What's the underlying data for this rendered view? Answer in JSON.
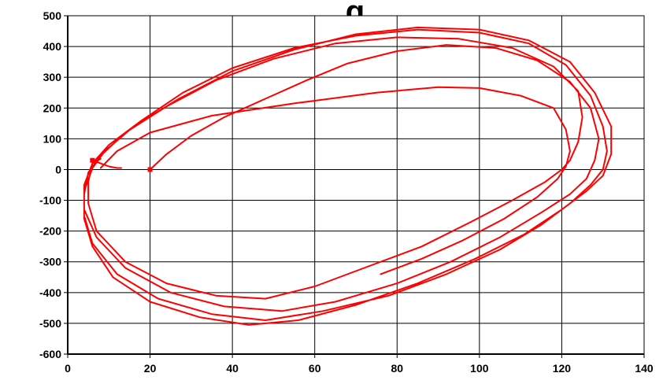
{
  "chart_data": {
    "type": "line",
    "title": "g",
    "xlabel": "",
    "ylabel": "",
    "xlim": [
      0,
      140
    ],
    "ylim": [
      -600,
      500
    ],
    "x_ticks": [
      "0",
      "20",
      "40",
      "60",
      "80",
      "100",
      "120",
      "140"
    ],
    "y_ticks": [
      "500",
      "400",
      "300",
      "200",
      "100",
      "0",
      "-100",
      "-200",
      "-300",
      "-400",
      "-500",
      "-600"
    ],
    "grid": true,
    "legend": "none",
    "series_color": "#ff0000",
    "series": [
      {
        "points": [
          [
            20,
            0
          ],
          [
            24,
            50
          ],
          [
            30,
            110
          ],
          [
            38,
            170
          ],
          [
            48,
            230
          ],
          [
            58,
            290
          ],
          [
            68,
            345
          ],
          [
            80,
            385
          ],
          [
            92,
            405
          ],
          [
            104,
            395
          ],
          [
            114,
            355
          ],
          [
            122,
            285
          ],
          [
            127,
            200
          ],
          [
            129,
            100
          ],
          [
            128,
            30
          ],
          [
            126,
            -30
          ],
          [
            122,
            -80
          ],
          [
            115,
            -140
          ],
          [
            105,
            -220
          ],
          [
            93,
            -300
          ],
          [
            80,
            -370
          ],
          [
            65,
            -430
          ],
          [
            52,
            -460
          ],
          [
            38,
            -445
          ],
          [
            25,
            -400
          ],
          [
            14,
            -320
          ],
          [
            7,
            -220
          ],
          [
            4,
            -130
          ],
          [
            4,
            -50
          ],
          [
            6,
            20
          ],
          [
            10,
            80
          ],
          [
            18,
            160
          ],
          [
            28,
            250
          ],
          [
            40,
            330
          ],
          [
            55,
            395
          ],
          [
            70,
            435
          ],
          [
            85,
            455
          ],
          [
            100,
            445
          ],
          [
            112,
            410
          ],
          [
            121,
            340
          ],
          [
            127,
            240
          ],
          [
            130,
            140
          ],
          [
            131,
            60
          ],
          [
            130,
            0
          ],
          [
            127,
            -50
          ],
          [
            122,
            -110
          ],
          [
            115,
            -180
          ],
          [
            105,
            -260
          ],
          [
            92,
            -340
          ],
          [
            78,
            -410
          ],
          [
            62,
            -460
          ],
          [
            48,
            -490
          ],
          [
            35,
            -470
          ],
          [
            22,
            -420
          ],
          [
            12,
            -340
          ],
          [
            6,
            -240
          ],
          [
            4,
            -150
          ],
          [
            4,
            -70
          ],
          [
            6,
            5
          ],
          [
            9,
            60
          ],
          [
            16,
            140
          ],
          [
            27,
            230
          ],
          [
            40,
            320
          ],
          [
            55,
            390
          ],
          [
            70,
            440
          ],
          [
            85,
            462
          ],
          [
            100,
            455
          ],
          [
            112,
            420
          ],
          [
            122,
            350
          ],
          [
            128,
            250
          ],
          [
            132,
            140
          ],
          [
            132,
            50
          ],
          [
            130,
            -20
          ],
          [
            126,
            -70
          ],
          [
            120,
            -130
          ],
          [
            111,
            -210
          ],
          [
            99,
            -290
          ],
          [
            85,
            -370
          ],
          [
            70,
            -440
          ],
          [
            56,
            -490
          ],
          [
            44,
            -505
          ],
          [
            32,
            -480
          ],
          [
            20,
            -430
          ],
          [
            11,
            -350
          ],
          [
            6,
            -250
          ],
          [
            4,
            -160
          ],
          [
            4,
            -80
          ],
          [
            5,
            -10
          ],
          [
            8,
            45
          ],
          [
            14,
            120
          ],
          [
            24,
            205
          ],
          [
            36,
            290
          ],
          [
            50,
            360
          ],
          [
            65,
            410
          ],
          [
            80,
            430
          ],
          [
            95,
            425
          ],
          [
            108,
            395
          ],
          [
            118,
            335
          ],
          [
            124,
            255
          ],
          [
            125,
            170
          ],
          [
            124,
            90
          ],
          [
            122,
            30
          ],
          [
            120,
            0
          ],
          [
            116,
            -40
          ],
          [
            108,
            -100
          ],
          [
            98,
            -170
          ],
          [
            86,
            -250
          ],
          [
            72,
            -320
          ],
          [
            60,
            -380
          ],
          [
            48,
            -420
          ],
          [
            36,
            -410
          ],
          [
            24,
            -370
          ],
          [
            14,
            -300
          ],
          [
            7,
            -200
          ],
          [
            5,
            -110
          ],
          [
            5,
            -40
          ],
          [
            6,
            20
          ],
          [
            8,
            35
          ],
          [
            6,
            30
          ],
          [
            10,
            10
          ],
          [
            12,
            5
          ],
          [
            13,
            5
          ]
        ]
      },
      {
        "points": [
          [
            8,
            5
          ],
          [
            12,
            60
          ],
          [
            20,
            120
          ],
          [
            35,
            175
          ],
          [
            55,
            215
          ],
          [
            75,
            250
          ],
          [
            90,
            268
          ],
          [
            100,
            265
          ],
          [
            110,
            240
          ],
          [
            118,
            200
          ],
          [
            121,
            130
          ],
          [
            122,
            60
          ],
          [
            121,
            10
          ],
          [
            119,
            -30
          ],
          [
            114,
            -90
          ],
          [
            106,
            -160
          ],
          [
            96,
            -230
          ],
          [
            86,
            -290
          ],
          [
            76,
            -340
          ]
        ]
      }
    ]
  }
}
